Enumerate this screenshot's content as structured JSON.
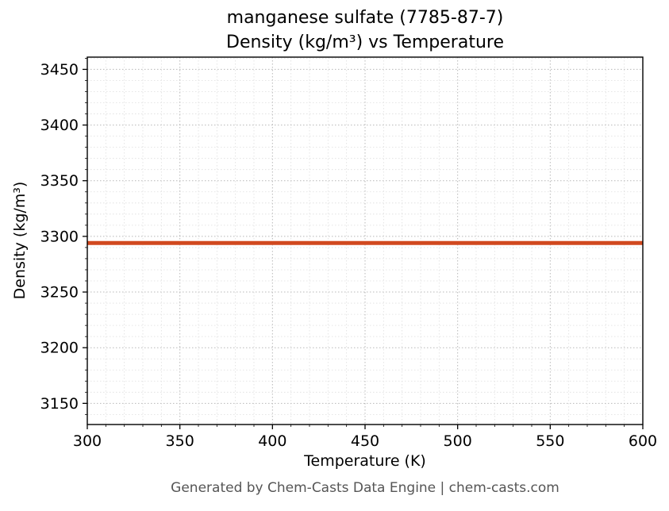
{
  "title": {
    "line1": "manganese sulfate (7785-87-7)",
    "line2": "Density (kg/m³) vs Temperature"
  },
  "footer": "Generated by Chem-Casts Data Engine | chem-casts.com",
  "chart_data": {
    "type": "line",
    "title": "manganese sulfate (7785-87-7) — Density (kg/m³) vs Temperature",
    "xlabel": "Temperature (K)",
    "ylabel": "Density (kg/m³)",
    "x": [
      300,
      600
    ],
    "series": [
      {
        "name": "density",
        "values": [
          3294,
          3294
        ],
        "color": "#d1491f",
        "width": 5
      }
    ],
    "xlim": [
      300,
      600
    ],
    "ylim": [
      3131,
      3461
    ],
    "x_ticks": [
      300,
      350,
      400,
      450,
      500,
      550,
      600
    ],
    "y_ticks": [
      3150,
      3200,
      3250,
      3300,
      3350,
      3400,
      3450
    ],
    "x_minor_step": 10,
    "y_minor_step": 10,
    "grid": true,
    "grid_style": "dotted",
    "major_grid_color": "#b8b8b8",
    "minor_grid_color": "#dedede",
    "axis_color": "#000000",
    "legend": "none"
  }
}
